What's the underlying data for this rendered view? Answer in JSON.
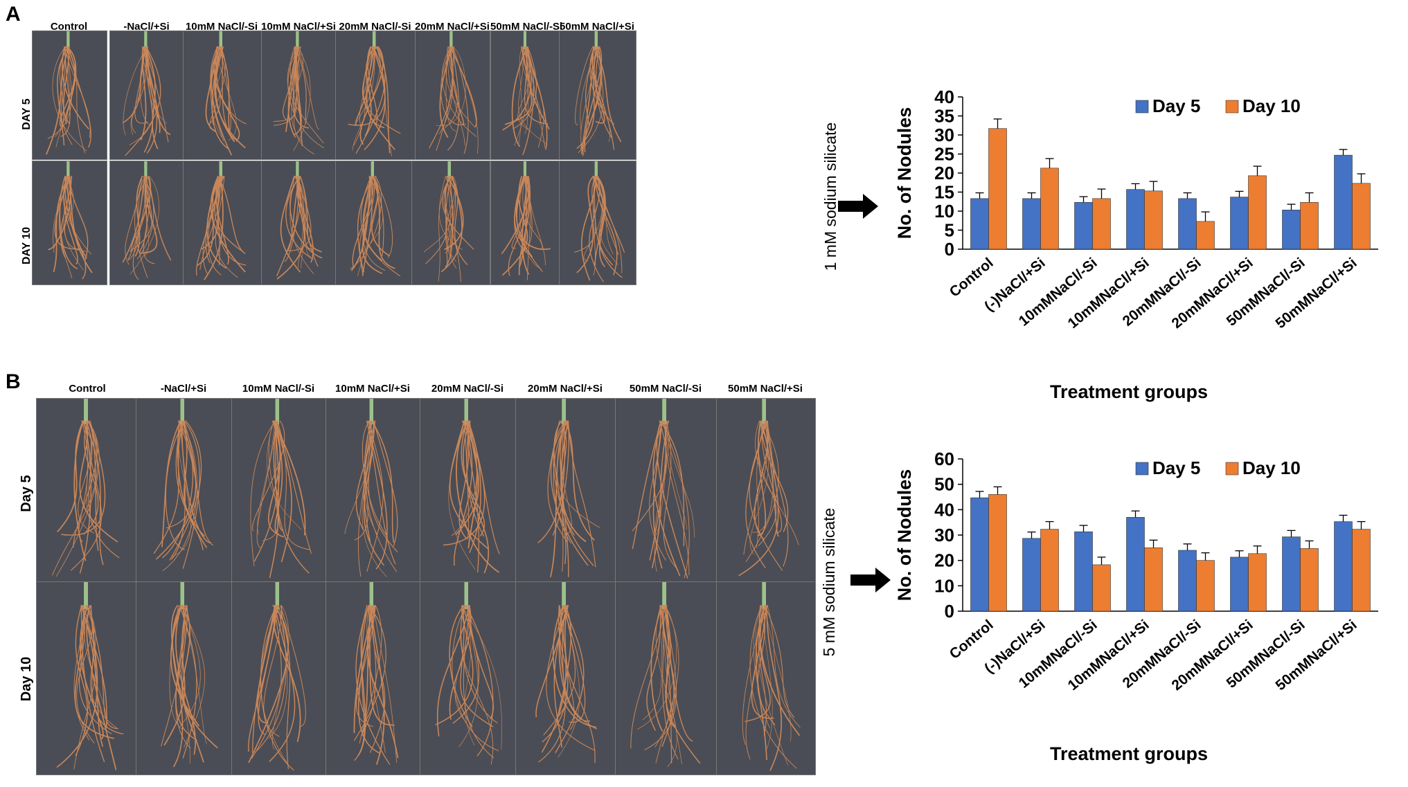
{
  "panels": [
    {
      "letter": "A",
      "columns": [
        "Control",
        "-NaCl/+Si",
        "10mM NaCl/-Si",
        "10mM NaCl/+Si",
        "20mM NaCl/-Si",
        "20mM NaCl/+Si",
        "50mM NaCl/-Si",
        "50mM NaCl/+Si"
      ],
      "rows": [
        "DAY 5",
        "DAY 10"
      ],
      "treatment_label": "1 mM sodium silicate"
    },
    {
      "letter": "B",
      "columns": [
        "Control",
        "-NaCl/+Si",
        "10mM  NaCl/-Si",
        "10mM  NaCl/+Si",
        "20mM  NaCl/-Si",
        "20mM  NaCl/+Si",
        "50mM  NaCl/-Si",
        "50mM  NaCl/+Si"
      ],
      "rows": [
        "Day 5",
        "Day 10"
      ],
      "treatment_label": "5 mM sodium silicate"
    }
  ],
  "colors": {
    "day5": "#4472C4",
    "day10": "#ED7D31",
    "photo_bg": "#4a4d55",
    "root": "#c9875a"
  },
  "icons": [
    "right-arrow-icon",
    "root-photo"
  ],
  "chart_data": [
    {
      "type": "bar",
      "categories": [
        "Control",
        "(-)NaCl/+Si",
        "10mMNaCl/-Si",
        "10mMNaCl/+Si",
        "20mMNaCl/-Si",
        "20mMNaCl/+Si",
        "50mMNaCl/-Si",
        "50mMNaCl/+Si"
      ],
      "series": [
        {
          "name": "Day 5",
          "values": [
            13.3,
            13.3,
            12.3,
            15.7,
            13.3,
            13.7,
            10.3,
            24.7
          ],
          "errors": [
            1.5,
            1.5,
            1.5,
            1.5,
            1.5,
            1.5,
            1.5,
            1.5
          ]
        },
        {
          "name": "Day 10",
          "values": [
            31.7,
            21.3,
            13.3,
            15.3,
            7.3,
            19.3,
            12.3,
            17.3
          ],
          "errors": [
            2.5,
            2.5,
            2.5,
            2.5,
            2.5,
            2.5,
            2.5,
            2.5
          ]
        }
      ],
      "title": "",
      "xlabel": "Treatment groups",
      "ylabel": "No. of Nodules",
      "ylim": [
        0,
        40
      ],
      "yticks": [
        0,
        5,
        10,
        15,
        20,
        25,
        30,
        35,
        40
      ],
      "legend": "top",
      "grid": false
    },
    {
      "type": "bar",
      "categories": [
        "Control",
        "(-)NaCl/+Si",
        "10mMNaCl/-Si",
        "10mMNaCl/+Si",
        "20mMNaCl/-Si",
        "20mMNaCl/+Si",
        "50mMNaCl/-Si",
        "50mMNaCl/+Si"
      ],
      "series": [
        {
          "name": "Day 5",
          "values": [
            44.7,
            28.7,
            31.3,
            37.0,
            24.0,
            21.3,
            29.3,
            35.3
          ],
          "errors": [
            2.5,
            2.5,
            2.5,
            2.5,
            2.5,
            2.5,
            2.5,
            2.5
          ]
        },
        {
          "name": "Day 10",
          "values": [
            46.0,
            32.3,
            18.3,
            25.0,
            20.0,
            22.7,
            24.7,
            32.3
          ],
          "errors": [
            3.0,
            3.0,
            3.0,
            3.0,
            3.0,
            3.0,
            3.0,
            3.0
          ]
        }
      ],
      "title": "",
      "xlabel": "Treatment groups",
      "ylabel": "No. of Nodules",
      "ylim": [
        0,
        60
      ],
      "yticks": [
        0,
        10,
        20,
        30,
        40,
        50,
        60
      ],
      "legend": "top",
      "grid": false
    }
  ]
}
